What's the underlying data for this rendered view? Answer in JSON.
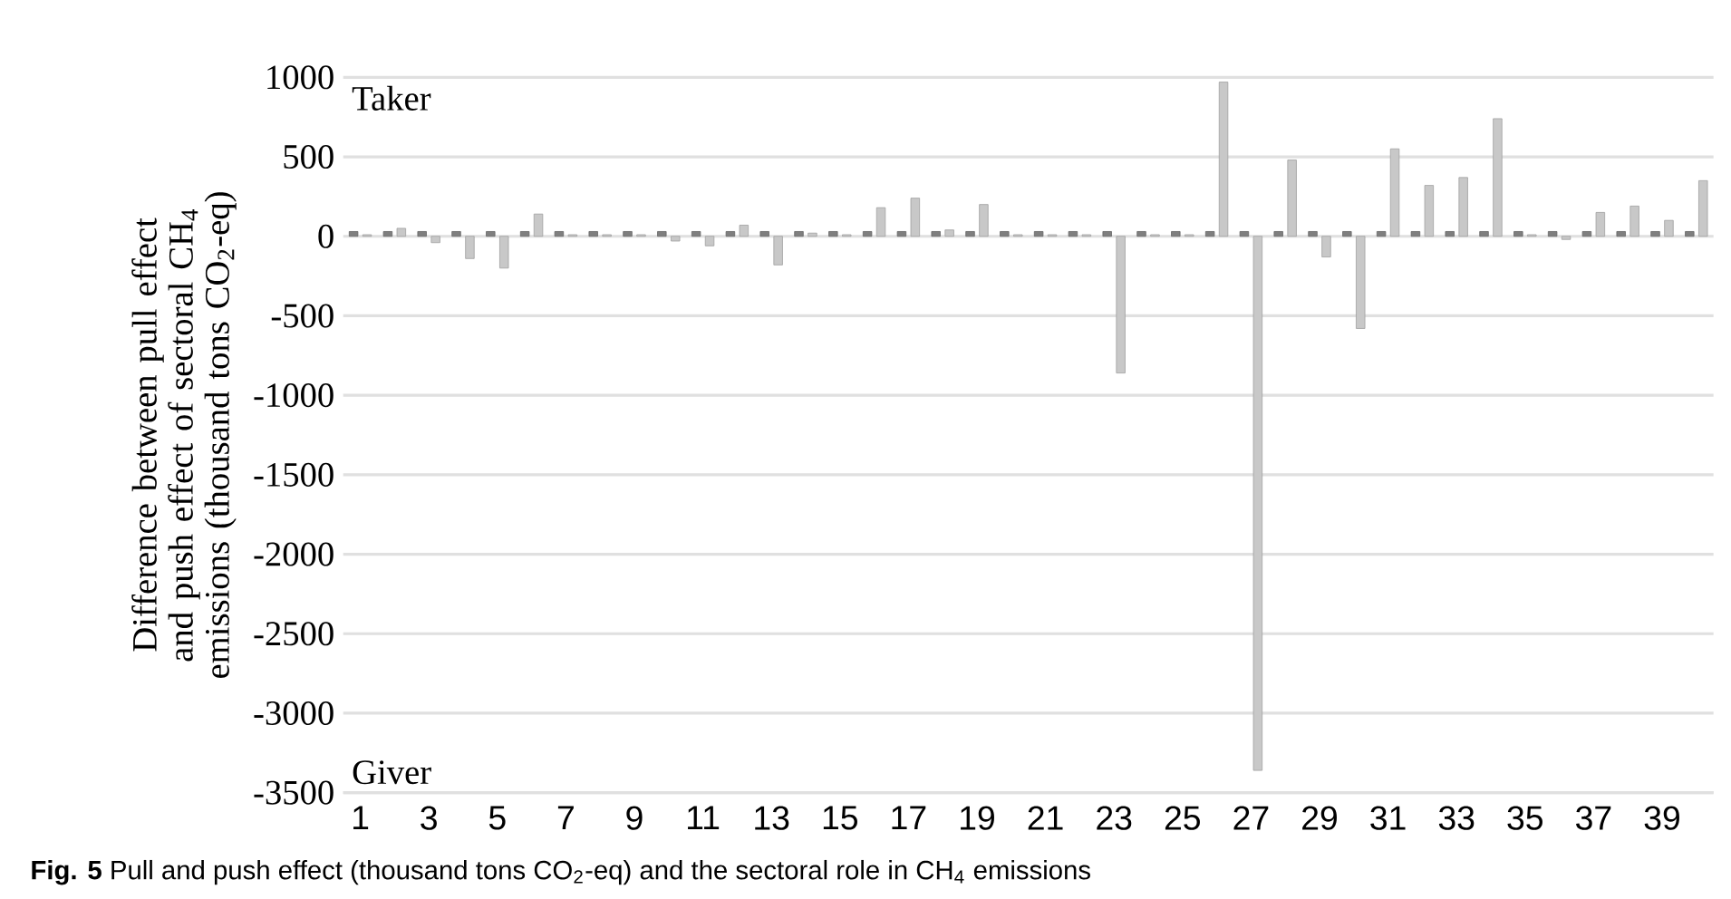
{
  "chart_data": {
    "type": "bar",
    "ylabel": "Difference between pull effect and push effect of sectoral CH$_{4}$ emissions (thousand tons CO$_{2}$-eq)",
    "annotations": [
      "Taker",
      "Giver",
      "**Fig. 5** Pull and push effect (thousand tons CO$_{2}$-eq) and the sectoral role in CH$_{4}$ emissions"
    ],
    "categories": [
      "1",
      null,
      "3",
      null,
      "5",
      null,
      "7",
      null,
      "9",
      null,
      "11",
      null,
      "13",
      null,
      "15",
      null,
      "17",
      null,
      "19",
      null,
      "21",
      null,
      "23",
      null,
      "25",
      null,
      "27",
      null,
      "29",
      null,
      "31",
      null,
      "33",
      null,
      "35",
      null,
      "37",
      null,
      "39",
      null
    ],
    "series": [
      {
        "color": "#7f7f7f",
        "values": [
          30,
          30,
          30,
          30,
          30,
          30,
          30,
          30,
          30,
          30,
          30,
          30,
          30,
          30,
          30,
          30,
          30,
          30,
          30,
          30,
          30,
          30,
          30,
          30,
          30,
          30,
          30,
          30,
          30,
          30,
          30,
          30,
          30,
          30,
          30,
          30,
          30,
          30,
          30,
          30
        ]
      },
      {
        "color": "#c8c8c8",
        "values": [
          10,
          50,
          -40,
          -140,
          -200,
          140,
          10,
          10,
          10,
          -30,
          -60,
          70,
          -180,
          20,
          10,
          180,
          240,
          40,
          200,
          10,
          10,
          10,
          -860,
          10,
          10,
          970,
          -3360,
          480,
          -130,
          -580,
          550,
          320,
          370,
          740,
          10,
          -20,
          150,
          190,
          100,
          350
        ]
      }
    ],
    "ylim": [
      -3500,
      1000
    ],
    "yticks": [
      -3500,
      -3000,
      -2500,
      -2000,
      -1500,
      -1000,
      -500,
      0,
      500,
      1000
    ],
    "grid": "y"
  }
}
